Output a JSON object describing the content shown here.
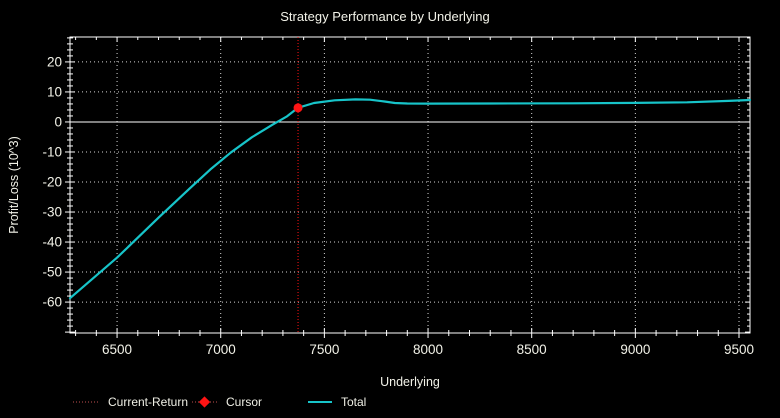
{
  "window": {
    "background": "#000000"
  },
  "title": "Strategy Performance by Underlying",
  "colors": {
    "background": "#000000",
    "axis": "#ffffff",
    "text": "#f2f2e8",
    "grid_dots": "#d6d6d6",
    "zero_line": "#ffffff",
    "total_line": "#17c4c9",
    "cursor_red": "#ff1414",
    "current_return_red": "#c05050"
  },
  "legend": {
    "items": [
      {
        "label": "Current-Return",
        "swatch": "dotted-line",
        "color": "#c05050"
      },
      {
        "label": "Cursor",
        "swatch": "diamond-on-dotted-line",
        "color": "#ff1414"
      },
      {
        "label": "Total",
        "swatch": "solid-line",
        "color": "#17c4c9"
      }
    ]
  },
  "chart_data": {
    "type": "line",
    "title": "Strategy Performance by Underlying",
    "xlabel": "Underlying",
    "ylabel": "Profit/Loss (10^3)",
    "xlim": [
      6273,
      9553
    ],
    "ylim": [
      -70.3,
      28.3
    ],
    "x_ticks": [
      6500,
      7000,
      7500,
      8000,
      8500,
      9000,
      9500
    ],
    "y_ticks": [
      20,
      10,
      0,
      -10,
      -20,
      -30,
      -40,
      -50,
      -60
    ],
    "x_minor_step": 100,
    "y_minor_step": 2,
    "grid": "dotted gridlines at major ticks; solid white line at y=0",
    "legend_position": "bottom",
    "series": [
      {
        "name": "Total",
        "color": "#17c4c9",
        "points": [
          [
            6273,
            -58.7
          ],
          [
            6500,
            -45.2
          ],
          [
            6700,
            -31.9
          ],
          [
            6850,
            -22.2
          ],
          [
            6950,
            -15.8
          ],
          [
            7050,
            -10.1
          ],
          [
            7150,
            -5.1
          ],
          [
            7250,
            -0.9
          ],
          [
            7320,
            1.9
          ],
          [
            7373,
            4.7
          ],
          [
            7450,
            6.3
          ],
          [
            7550,
            7.2
          ],
          [
            7650,
            7.5
          ],
          [
            7720,
            7.4
          ],
          [
            7790,
            6.8
          ],
          [
            7840,
            6.3
          ],
          [
            7900,
            6.15
          ],
          [
            8000,
            6.1
          ],
          [
            8300,
            6.15
          ],
          [
            8700,
            6.2
          ],
          [
            9000,
            6.35
          ],
          [
            9250,
            6.55
          ],
          [
            9450,
            7.0
          ],
          [
            9553,
            7.3
          ]
        ]
      }
    ],
    "cursor": {
      "name": "Cursor",
      "x": 7373,
      "y": 4.7,
      "color": "#ff1414"
    },
    "current_return_line": {
      "name": "Current-Return",
      "x": 7373,
      "style": "dotted-vertical",
      "color": "#ff1414"
    }
  }
}
